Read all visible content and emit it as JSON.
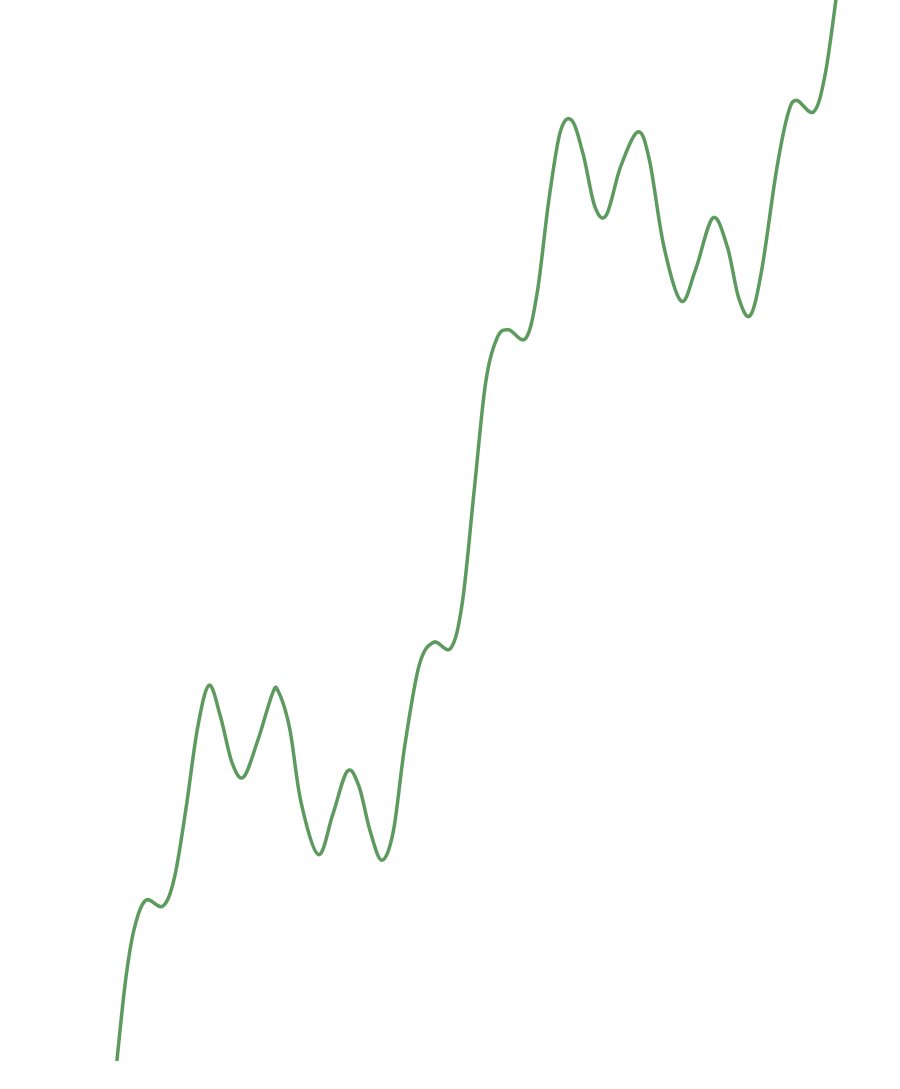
{
  "chart_data": {
    "type": "line",
    "x": [
      0,
      0.15,
      0.3,
      0.5,
      0.8,
      1.0,
      1.2,
      1.4,
      1.6,
      1.8,
      2.0,
      2.2,
      2.45,
      2.7,
      2.8,
      3.0,
      3.2,
      3.5,
      3.75,
      4.0,
      4.2,
      4.4,
      4.6,
      4.8,
      5.0,
      5.25,
      5.5,
      5.8,
      6.0,
      6.2,
      6.4,
      6.6,
      6.8,
      7.1,
      7.3,
      7.5,
      7.7,
      7.9,
      8.1,
      8.3,
      8.5,
      8.75,
      9.05,
      9.25,
      9.5,
      9.8,
      10.05,
      10.35,
      10.6,
      10.8,
      11.0,
      11.2,
      11.45,
      11.65,
      11.8,
      12.1,
      12.3,
      12.5
    ],
    "series": [
      {
        "color": "#5c9a5e",
        "values": [
          0,
          1.4,
          2.3,
          2.8,
          2.7,
          3.2,
          4.4,
          5.8,
          6.55,
          6.0,
          5.2,
          4.95,
          5.6,
          6.4,
          6.45,
          5.8,
          4.5,
          3.6,
          4.3,
          5.05,
          4.8,
          4.0,
          3.5,
          4.0,
          5.5,
          6.9,
          7.3,
          7.2,
          8.0,
          9.9,
          11.8,
          12.6,
          12.75,
          12.6,
          13.4,
          15.0,
          16.2,
          16.4,
          15.8,
          14.9,
          14.75,
          15.6,
          16.2,
          15.7,
          14.2,
          13.25,
          13.8,
          14.7,
          14.2,
          13.3,
          13.0,
          13.8,
          15.5,
          16.5,
          16.75,
          16.55,
          17.2,
          18.6
        ]
      }
    ],
    "xlim": [
      -2.03,
      13.6
    ],
    "ylim": [
      -0.49,
      18.5
    ],
    "xticks": [
      -2,
      0,
      2,
      4,
      6,
      8,
      10,
      12
    ],
    "yticks": [
      2,
      4,
      6,
      8,
      10,
      12,
      14,
      16,
      18
    ],
    "grid": true,
    "minor_divisions": 5
  }
}
